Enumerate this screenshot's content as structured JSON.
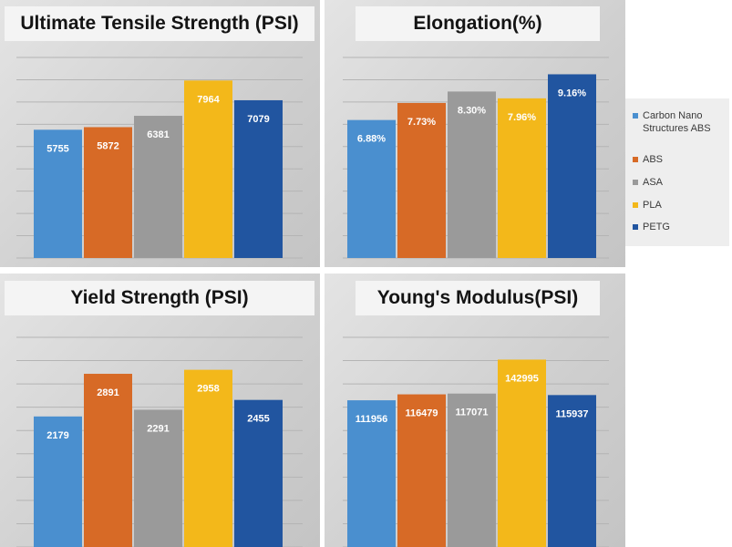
{
  "chart_data": [
    {
      "type": "bar",
      "title": "Ultimate Tensile Strength (PSI)",
      "categories": [
        "Carbon Nano Structures ABS",
        "ABS",
        "ASA",
        "PLA",
        "PETG"
      ],
      "values": [
        5755,
        5872,
        6381,
        7964,
        7079
      ],
      "data_labels": [
        "5755",
        "5872",
        "6381",
        "7964",
        "7079"
      ],
      "ylim": [
        0,
        9000
      ],
      "grid": true
    },
    {
      "type": "bar",
      "title": "Elongation(%)",
      "categories": [
        "Carbon Nano Structures ABS",
        "ABS",
        "ASA",
        "PLA",
        "PETG"
      ],
      "values": [
        6.88,
        7.73,
        8.3,
        7.96,
        9.16
      ],
      "data_labels": [
        "6.88%",
        "7.73%",
        "8.30%",
        "7.96%",
        "9.16%"
      ],
      "ylim": [
        0,
        10
      ],
      "grid": true
    },
    {
      "type": "bar",
      "title": "Yield Strength (PSI)",
      "categories": [
        "Carbon Nano Structures ABS",
        "ABS",
        "ASA",
        "PLA",
        "PETG"
      ],
      "values": [
        2179,
        2891,
        2291,
        2958,
        2455
      ],
      "data_labels": [
        "2179",
        "2891",
        "2291",
        "2958",
        "2455"
      ],
      "ylim": [
        0,
        3500
      ],
      "grid": true
    },
    {
      "type": "bar",
      "title": "Young's Modulus(PSI)",
      "categories": [
        "Carbon Nano Structures ABS",
        "ABS",
        "ASA",
        "PLA",
        "PETG"
      ],
      "values": [
        111956,
        116479,
        117071,
        142995,
        115937
      ],
      "data_labels": [
        "111956",
        "116479",
        "117071",
        "142995",
        "115937"
      ],
      "ylim": [
        0,
        160000
      ],
      "grid": true
    }
  ],
  "legend": {
    "placement": "right",
    "items": [
      {
        "label": "Carbon Nano Structures ABS",
        "color": "#4a8fcf"
      },
      {
        "label": "ABS",
        "color": "#d76a26"
      },
      {
        "label": "ASA",
        "color": "#9a9a9a"
      },
      {
        "label": "PLA",
        "color": "#f3b81a"
      },
      {
        "label": "PETG",
        "color": "#2155a0"
      }
    ]
  }
}
